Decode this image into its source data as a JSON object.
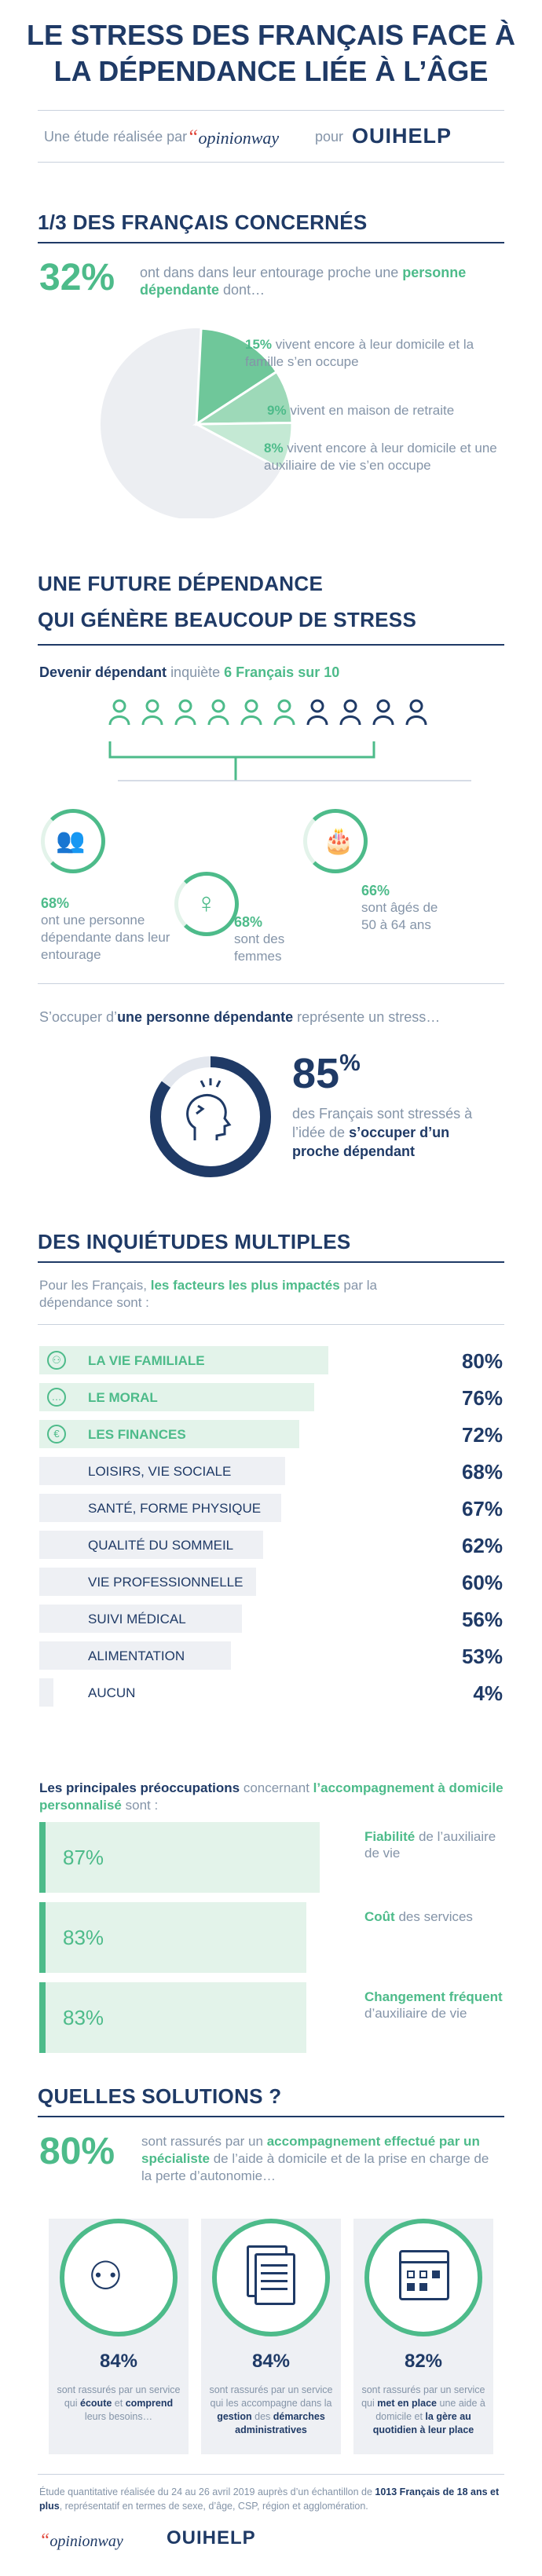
{
  "header": {
    "title_line1": "LE STRESS DES FRANÇAIS FACE À",
    "title_line2": "LA DÉPENDANCE LIÉE À L’ÂGE",
    "study_prefix": "Une étude réalisée par",
    "opinionway_logo": "opinionway",
    "study_pour": "pour",
    "ouihelp_logo": "OUIHELP"
  },
  "section1": {
    "heading": "1/3 DES FRANÇAIS CONCERNÉS",
    "pct": "32%",
    "intro_text": "ont dans dans leur entourage proche une",
    "intro_bold": "personne dépendante",
    "intro_end": "dont…",
    "pie": [
      {
        "pct": "15%",
        "text": "vivent encore à leur domicile et la famille s’en occupe",
        "value": 15
      },
      {
        "pct": "9%",
        "text": "vivent en maison de retraite",
        "value": 9
      },
      {
        "pct": "8%",
        "text": "vivent encore à leur domicile et une auxiliaire de vie s’en occupe",
        "value": 8
      }
    ]
  },
  "section2": {
    "heading_line1": "UNE FUTURE DÉPENDANCE",
    "heading_line2": "QUI GÉNÈRE BEAUCOUP DE STRESS",
    "sub_bold": "Devenir dépendant",
    "sub_text": "inquiète",
    "sub_green": "6 Français sur 10",
    "people_total": 10,
    "people_green": 6,
    "stat_left_pct": "68%",
    "stat_left_text": "ont une personne dépendante dans leur entourage",
    "stat_mid_pct": "68%",
    "stat_mid_text": "sont des femmes",
    "stat_right_pct": "66%",
    "stat_right_text": "sont âgés de 50 à 64 ans",
    "care_intro_pre": "S’occuper d’",
    "care_intro_bold": "une personne dépendante",
    "care_intro_post": "représente un stress…",
    "stress_pct_num": "85",
    "stress_pct_sign": "%",
    "stress_value": 85,
    "stress_text": "des Français sont stressés à l’idée de",
    "stress_bold": "s’occuper d’un proche dépendant"
  },
  "section3": {
    "heading": "DES INQUIÉTUDES MULTIPLES",
    "intro_pre": "Pour les Français,",
    "intro_bold": "les facteurs les plus impactés",
    "intro_post": "par la dépendance sont :",
    "factors": [
      {
        "label": "LA VIE FAMILIALE",
        "pct": "80%",
        "value": 80,
        "highlight": true,
        "icon": "family-icon"
      },
      {
        "label": "LE MORAL",
        "pct": "76%",
        "value": 76,
        "highlight": true,
        "icon": "chat-bubble-icon"
      },
      {
        "label": "LES FINANCES",
        "pct": "72%",
        "value": 72,
        "highlight": true,
        "icon": "euro-icon"
      },
      {
        "label": "LOISIRS, VIE SOCIALE",
        "pct": "68%",
        "value": 68,
        "highlight": false
      },
      {
        "label": "SANTÉ, FORME PHYSIQUE",
        "pct": "67%",
        "value": 67,
        "highlight": false
      },
      {
        "label": "QUALITÉ DU SOMMEIL",
        "pct": "62%",
        "value": 62,
        "highlight": false
      },
      {
        "label": "VIE PROFESSIONNELLE",
        "pct": "60%",
        "value": 60,
        "highlight": false
      },
      {
        "label": "SUIVI MÉDICAL",
        "pct": "56%",
        "value": 56,
        "highlight": false
      },
      {
        "label": "ALIMENTATION",
        "pct": "53%",
        "value": 53,
        "highlight": false
      },
      {
        "label": "AUCUN",
        "pct": "4%",
        "value": 4,
        "highlight": false
      }
    ],
    "concerns_intro_bold1": "Les principales préoccupations",
    "concerns_intro_text": "concernant",
    "concerns_intro_bold2": "l’accompagnement à domicile personnalisé",
    "concerns_intro_end": "sont :",
    "concerns": [
      {
        "pct": "87%",
        "value": 87,
        "bold": "Fiabilité",
        "text": "de l’auxiliaire de vie"
      },
      {
        "pct": "83%",
        "value": 83,
        "bold": "Coût",
        "text": "des services"
      },
      {
        "pct": "83%",
        "value": 83,
        "bold": "Changement fréquent",
        "text": "d’auxiliaire de vie"
      }
    ]
  },
  "section4": {
    "heading": "QUELLES SOLUTIONS ?",
    "pct": "80%",
    "text_pre": "sont rassurés par un",
    "text_bold": "accompagnement effectué par un spécialiste",
    "text_post": "de l’aide à domicile et de la prise en charge de la perte d’autonomie…",
    "cards": [
      {
        "pct": "84%",
        "pre": "sont rassurés par un service qui",
        "b1": "écoute",
        "mid": "et",
        "b2": "comprend",
        "post": "leurs besoins…"
      },
      {
        "pct": "84%",
        "pre": "sont rassurés par un service qui les accompagne dans la",
        "b1": "gestion",
        "mid": "des",
        "b2": "démarches administratives",
        "post": ""
      },
      {
        "pct": "82%",
        "pre": "sont rassurés par un service qui",
        "b1": "met en place",
        "mid": "une aide à domicile et",
        "b2": "la gère au quotidien à leur place",
        "post": ""
      }
    ]
  },
  "footer": {
    "note_pre": "Étude quantitative réalisée du 24 au 26 avril 2019 auprès d’un échantillon de",
    "note_bold": "1013 Français de 18 ans et plus",
    "note_post": ", représentatif en termes de sexe, d’âge, CSP, région et agglomération.",
    "opinionway_logo": "opinionway",
    "ouihelp_logo": "OUIHELP"
  },
  "colors": {
    "navy": "#1f3a66",
    "green": "#4dbb8a",
    "grey": "#8494a8",
    "light": "#eef0f4"
  }
}
